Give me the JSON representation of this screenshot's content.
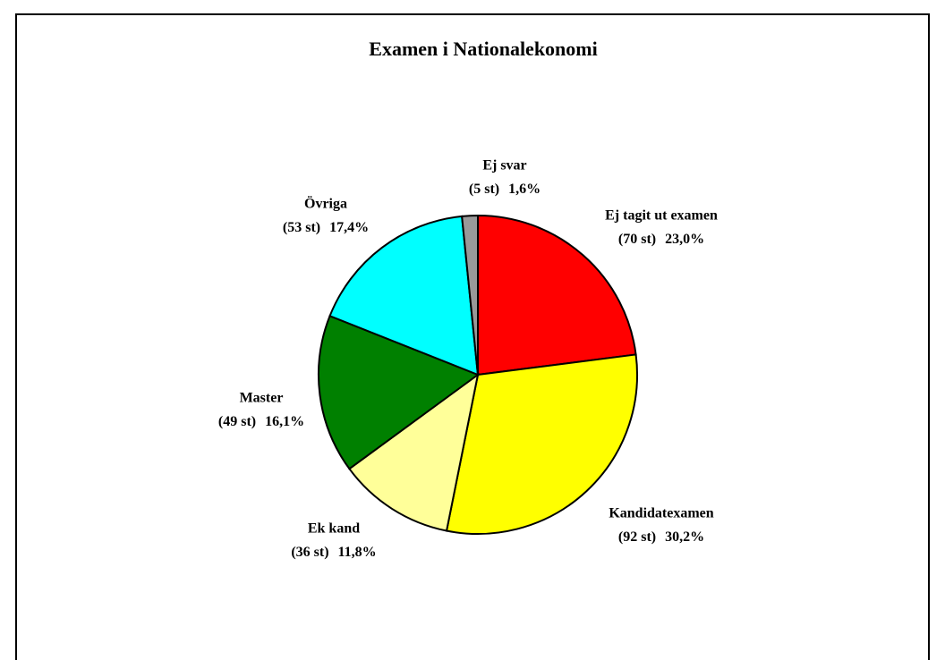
{
  "chart_data": {
    "type": "pie",
    "title": "Examen i Nationalekonomi",
    "categories": [
      "Ej tagit ut examen",
      "Kandidatexamen",
      "Ek kand",
      "Master",
      "Övriga",
      "Ej svar"
    ],
    "values": [
      23.0,
      30.2,
      11.8,
      16.1,
      17.4,
      1.6
    ],
    "value_labels": [
      "23,0%",
      "30,2%",
      "11,8%",
      "16,1%",
      "17,4%",
      "1,6%"
    ],
    "count_labels": [
      "(70 st)",
      "(92 st)",
      "(36 st)",
      "(49 st)",
      "(53 st)",
      "(5 st)"
    ],
    "colors": [
      "#ff0000",
      "#ffff00",
      "#ffff99",
      "#008000",
      "#00ffff",
      "#999999"
    ]
  }
}
